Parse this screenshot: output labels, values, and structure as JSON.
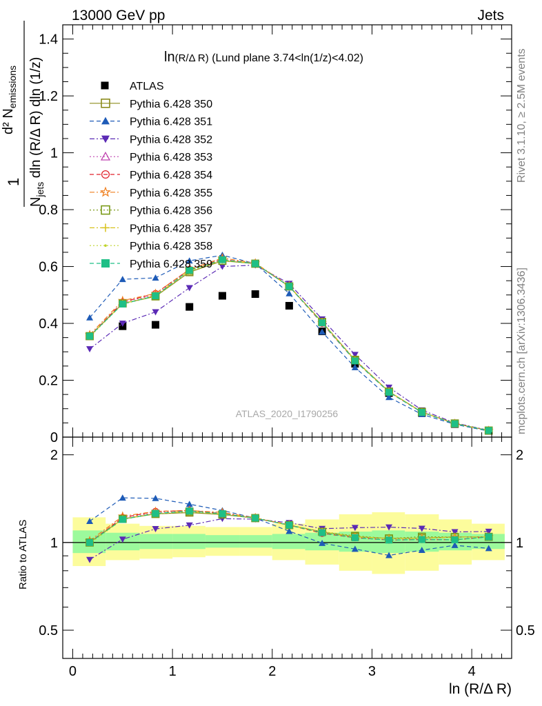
{
  "header": {
    "left": "13000 GeV pp",
    "right": "Jets"
  },
  "title": {
    "main": "ln",
    "paren": "(R/Δ R)",
    "rest": " (Lund plane 3.74<ln(1/z)<4.02)"
  },
  "side_labels": {
    "rivet": "Rivet 3.1.10, ≥ 2.5M events",
    "mcplots": "mcplots.cern.ch [arXiv:1306.3436]"
  },
  "watermark": "ATLAS_2020_I1790256",
  "axes": {
    "ylabel_top_num": "1",
    "ylabel_top_main": "d² N",
    "ylabel_top_main_sub": "emissions",
    "ylabel_top_den": "N",
    "ylabel_top_den_sub": "jets",
    "ylabel_top_den_rest": " dln (R/Δ R) dln (1/z)",
    "ylabel_ratio": "Ratio to ATLAS",
    "xlabel": "ln (R/Δ R)",
    "x_ticks": [
      "0",
      "1",
      "2",
      "3",
      "4"
    ],
    "y_ticks_main": [
      "0",
      "0.2",
      "0.4",
      "0.6",
      "0.8",
      "1",
      "1.2",
      "1.4"
    ],
    "y_ticks_ratio": [
      "0.5",
      "1",
      "2"
    ]
  },
  "legend": [
    {
      "label": "ATLAS",
      "color": "#000000",
      "marker": "square-filled",
      "dash": "none"
    },
    {
      "label": "Pythia 6.428 350",
      "color": "#8b8b1c",
      "marker": "square-open",
      "dash": "solid"
    },
    {
      "label": "Pythia 6.428 351",
      "color": "#1e5bb7",
      "marker": "triangle-up-filled",
      "dash": "dashed"
    },
    {
      "label": "Pythia 6.428 352",
      "color": "#5b2ab5",
      "marker": "triangle-down-filled",
      "dash": "dashdot"
    },
    {
      "label": "Pythia 6.428 353",
      "color": "#c044b0",
      "marker": "triangle-up-open",
      "dash": "dotted"
    },
    {
      "label": "Pythia 6.428 354",
      "color": "#e0202a",
      "marker": "circle-open",
      "dash": "dashed"
    },
    {
      "label": "Pythia 6.428 355",
      "color": "#ef7d1b",
      "marker": "star-open",
      "dash": "dashdot"
    },
    {
      "label": "Pythia 6.428 356",
      "color": "#7a9a18",
      "marker": "square-open",
      "dash": "dotted"
    },
    {
      "label": "Pythia 6.428 357",
      "color": "#d8c21a",
      "marker": "cross",
      "dash": "dashdot"
    },
    {
      "label": "Pythia 6.428 358",
      "color": "#bfd42a",
      "marker": "dot",
      "dash": "dotted"
    },
    {
      "label": "Pythia 6.428 359",
      "color": "#1fbf86",
      "marker": "square-filled",
      "dash": "dashed"
    }
  ],
  "chart_data": {
    "type": "scatter",
    "x": [
      0.17,
      0.5,
      0.83,
      1.17,
      1.5,
      1.83,
      2.17,
      2.5,
      2.83,
      3.17,
      3.5,
      3.83,
      4.17
    ],
    "xlim": [
      -0.1,
      4.4
    ],
    "ylim": [
      0,
      1.45
    ],
    "ratio_ylim": [
      0.4,
      2.3
    ],
    "ratio_log": true,
    "band_edges": [
      0.0,
      0.33,
      0.67,
      1.0,
      1.33,
      1.67,
      2.0,
      2.33,
      2.67,
      3.0,
      3.33,
      3.67,
      4.0,
      4.33
    ],
    "band_inner": [
      [
        0.92,
        1.1
      ],
      [
        0.94,
        1.08
      ],
      [
        0.95,
        1.07
      ],
      [
        0.95,
        1.07
      ],
      [
        0.96,
        1.06
      ],
      [
        0.96,
        1.06
      ],
      [
        0.95,
        1.07
      ],
      [
        0.94,
        1.08
      ],
      [
        0.93,
        1.09
      ],
      [
        0.92,
        1.1
      ],
      [
        0.93,
        1.09
      ],
      [
        0.94,
        1.08
      ],
      [
        0.95,
        1.07
      ]
    ],
    "band_outer": [
      [
        0.83,
        1.22
      ],
      [
        0.87,
        1.16
      ],
      [
        0.88,
        1.14
      ],
      [
        0.89,
        1.14
      ],
      [
        0.9,
        1.13
      ],
      [
        0.9,
        1.13
      ],
      [
        0.87,
        1.16
      ],
      [
        0.84,
        1.2
      ],
      [
        0.8,
        1.25
      ],
      [
        0.78,
        1.27
      ],
      [
        0.8,
        1.25
      ],
      [
        0.84,
        1.2
      ],
      [
        0.87,
        1.16
      ]
    ],
    "series": [
      {
        "name": "ATLAS",
        "values": [
          0.355,
          0.39,
          0.395,
          0.458,
          0.497,
          0.503,
          0.462,
          0.372,
          0.258,
          0.155,
          0.085,
          0.046,
          0.022
        ]
      },
      {
        "name": "Pythia 6.428 350",
        "values": [
          0.355,
          0.47,
          0.495,
          0.58,
          0.62,
          0.61,
          0.53,
          0.405,
          0.27,
          0.16,
          0.088,
          0.048,
          0.023
        ]
      },
      {
        "name": "Pythia 6.428 351",
        "values": [
          0.42,
          0.555,
          0.56,
          0.62,
          0.64,
          0.61,
          0.505,
          0.37,
          0.245,
          0.14,
          0.08,
          0.045,
          0.021
        ]
      },
      {
        "name": "Pythia 6.428 352",
        "values": [
          0.31,
          0.4,
          0.44,
          0.525,
          0.6,
          0.605,
          0.54,
          0.415,
          0.29,
          0.175,
          0.095,
          0.05,
          0.024
        ]
      },
      {
        "name": "Pythia 6.428 353",
        "values": [
          0.355,
          0.475,
          0.5,
          0.59,
          0.625,
          0.61,
          0.53,
          0.405,
          0.27,
          0.16,
          0.088,
          0.048,
          0.023
        ]
      },
      {
        "name": "Pythia 6.428 354",
        "values": [
          0.355,
          0.475,
          0.505,
          0.59,
          0.625,
          0.61,
          0.53,
          0.4,
          0.268,
          0.158,
          0.087,
          0.047,
          0.023
        ]
      },
      {
        "name": "Pythia 6.428 355",
        "values": [
          0.36,
          0.48,
          0.505,
          0.59,
          0.63,
          0.612,
          0.532,
          0.402,
          0.27,
          0.16,
          0.088,
          0.048,
          0.023
        ]
      },
      {
        "name": "Pythia 6.428 356",
        "values": [
          0.355,
          0.47,
          0.495,
          0.585,
          0.62,
          0.61,
          0.53,
          0.405,
          0.272,
          0.16,
          0.089,
          0.048,
          0.023
        ]
      },
      {
        "name": "Pythia 6.428 357",
        "values": [
          0.355,
          0.47,
          0.498,
          0.585,
          0.623,
          0.61,
          0.53,
          0.405,
          0.27,
          0.16,
          0.088,
          0.048,
          0.023
        ]
      },
      {
        "name": "Pythia 6.428 358",
        "values": [
          0.352,
          0.468,
          0.495,
          0.585,
          0.622,
          0.61,
          0.53,
          0.405,
          0.27,
          0.16,
          0.088,
          0.048,
          0.023
        ]
      },
      {
        "name": "Pythia 6.428 359",
        "values": [
          0.355,
          0.468,
          0.497,
          0.587,
          0.624,
          0.61,
          0.53,
          0.402,
          0.268,
          0.158,
          0.087,
          0.047,
          0.023
        ]
      }
    ]
  }
}
